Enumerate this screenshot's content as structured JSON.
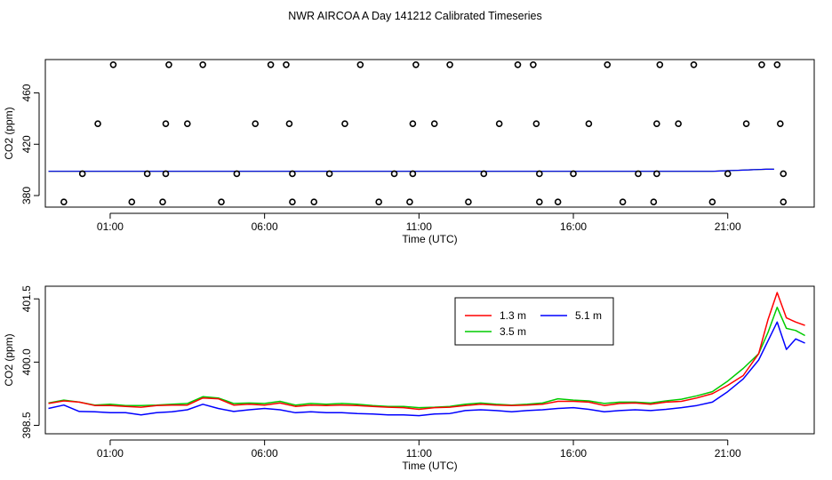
{
  "title": "NWR AIRCOA A  Day 141212  Calibrated Timeseries",
  "chart_data": [
    {
      "type": "scatter",
      "xlabel": "Time (UTC)",
      "ylabel": "CO2 (ppm)",
      "xlim": [
        -1.1,
        23.8
      ],
      "ylim": [
        371,
        486
      ],
      "x_ticks": [
        1,
        6,
        11,
        16,
        21
      ],
      "x_tick_labels": [
        "01:00",
        "06:00",
        "11:00",
        "16:00",
        "21:00"
      ],
      "y_ticks": [
        380,
        420,
        460
      ],
      "y_tick_labels": [
        "380",
        "420",
        "460"
      ],
      "cal_points": [
        {
          "x": -0.5,
          "y": 375
        },
        {
          "x": 0.1,
          "y": 397
        },
        {
          "x": 0.6,
          "y": 436
        },
        {
          "x": 1.1,
          "y": 482
        },
        {
          "x": 1.7,
          "y": 375
        },
        {
          "x": 2.2,
          "y": 397
        },
        {
          "x": 2.7,
          "y": 375
        },
        {
          "x": 2.8,
          "y": 397
        },
        {
          "x": 2.8,
          "y": 436
        },
        {
          "x": 2.9,
          "y": 482
        },
        {
          "x": 3.5,
          "y": 436
        },
        {
          "x": 4.0,
          "y": 482
        },
        {
          "x": 4.6,
          "y": 375
        },
        {
          "x": 5.1,
          "y": 397
        },
        {
          "x": 5.7,
          "y": 436
        },
        {
          "x": 6.2,
          "y": 482
        },
        {
          "x": 6.7,
          "y": 482
        },
        {
          "x": 6.8,
          "y": 436
        },
        {
          "x": 6.9,
          "y": 397
        },
        {
          "x": 6.9,
          "y": 375
        },
        {
          "x": 7.6,
          "y": 375
        },
        {
          "x": 8.1,
          "y": 397
        },
        {
          "x": 8.6,
          "y": 436
        },
        {
          "x": 9.1,
          "y": 482
        },
        {
          "x": 9.7,
          "y": 375
        },
        {
          "x": 10.2,
          "y": 397
        },
        {
          "x": 10.7,
          "y": 375
        },
        {
          "x": 10.8,
          "y": 397
        },
        {
          "x": 10.8,
          "y": 436
        },
        {
          "x": 10.9,
          "y": 482
        },
        {
          "x": 11.5,
          "y": 436
        },
        {
          "x": 12.0,
          "y": 482
        },
        {
          "x": 12.6,
          "y": 375
        },
        {
          "x": 13.1,
          "y": 397
        },
        {
          "x": 13.6,
          "y": 436
        },
        {
          "x": 14.2,
          "y": 482
        },
        {
          "x": 14.7,
          "y": 482
        },
        {
          "x": 14.8,
          "y": 436
        },
        {
          "x": 14.9,
          "y": 397
        },
        {
          "x": 14.9,
          "y": 375
        },
        {
          "x": 15.5,
          "y": 375
        },
        {
          "x": 16.0,
          "y": 397
        },
        {
          "x": 16.5,
          "y": 436
        },
        {
          "x": 17.1,
          "y": 482
        },
        {
          "x": 17.6,
          "y": 375
        },
        {
          "x": 18.1,
          "y": 397
        },
        {
          "x": 18.6,
          "y": 375
        },
        {
          "x": 18.7,
          "y": 397
        },
        {
          "x": 18.7,
          "y": 436
        },
        {
          "x": 18.8,
          "y": 482
        },
        {
          "x": 19.4,
          "y": 436
        },
        {
          "x": 19.9,
          "y": 482
        },
        {
          "x": 20.5,
          "y": 375
        },
        {
          "x": 21.0,
          "y": 397
        },
        {
          "x": 21.6,
          "y": 436
        },
        {
          "x": 22.1,
          "y": 482
        },
        {
          "x": 22.6,
          "y": 482
        },
        {
          "x": 22.7,
          "y": 436
        },
        {
          "x": 22.8,
          "y": 397
        },
        {
          "x": 22.8,
          "y": 375
        }
      ],
      "series_level": 398.9,
      "series_end_level": 400.5,
      "series_rise_start": 20.5,
      "series_x_range": [
        -1.0,
        22.7
      ],
      "series_colors": [
        "#ff0000",
        "#00cc00",
        "#0000ff"
      ]
    },
    {
      "type": "line",
      "xlabel": "Time (UTC)",
      "ylabel": "CO2 (ppm)",
      "xlim": [
        -1.1,
        23.8
      ],
      "ylim": [
        398.3,
        401.8
      ],
      "x_ticks": [
        1,
        6,
        11,
        16,
        21
      ],
      "x_tick_labels": [
        "01:00",
        "06:00",
        "11:00",
        "16:00",
        "21:00"
      ],
      "y_ticks": [
        398.5,
        400.0,
        401.5
      ],
      "y_tick_labels": [
        "398.5",
        "400.0",
        "401.5"
      ],
      "legend": {
        "position": "top-right",
        "entries": [
          {
            "label": "1.3 m",
            "color": "#ff0000"
          },
          {
            "label": "3.5 m",
            "color": "#00cc00"
          },
          {
            "label": "5.1 m",
            "color": "#0000ff"
          }
        ]
      },
      "series": [
        {
          "name": "1.3 m",
          "color": "#ff0000",
          "points": [
            [
              -1.0,
              399.02
            ],
            [
              -0.5,
              399.08
            ],
            [
              0.0,
              399.05
            ],
            [
              0.5,
              398.97
            ],
            [
              1.0,
              398.97
            ],
            [
              1.5,
              398.95
            ],
            [
              2.0,
              398.93
            ],
            [
              2.5,
              398.97
            ],
            [
              3.0,
              398.98
            ],
            [
              3.5,
              398.98
            ],
            [
              4.0,
              399.15
            ],
            [
              4.5,
              399.13
            ],
            [
              5.0,
              398.98
            ],
            [
              5.5,
              399.0
            ],
            [
              6.0,
              398.98
            ],
            [
              6.5,
              399.03
            ],
            [
              7.0,
              398.95
            ],
            [
              7.5,
              398.98
            ],
            [
              8.0,
              398.97
            ],
            [
              8.5,
              398.98
            ],
            [
              9.0,
              398.97
            ],
            [
              9.5,
              398.95
            ],
            [
              10.0,
              398.93
            ],
            [
              10.5,
              398.92
            ],
            [
              11.0,
              398.88
            ],
            [
              11.5,
              398.92
            ],
            [
              12.0,
              398.93
            ],
            [
              12.5,
              398.97
            ],
            [
              13.0,
              399.0
            ],
            [
              13.5,
              398.98
            ],
            [
              14.0,
              398.97
            ],
            [
              14.5,
              398.98
            ],
            [
              15.0,
              399.0
            ],
            [
              15.5,
              399.07
            ],
            [
              16.0,
              399.07
            ],
            [
              16.5,
              399.05
            ],
            [
              17.0,
              398.97
            ],
            [
              17.5,
              399.02
            ],
            [
              18.0,
              399.03
            ],
            [
              18.5,
              399.0
            ],
            [
              19.0,
              399.05
            ],
            [
              19.5,
              399.07
            ],
            [
              20.0,
              399.15
            ],
            [
              20.5,
              399.25
            ],
            [
              21.0,
              399.45
            ],
            [
              21.5,
              399.68
            ],
            [
              22.0,
              400.2
            ],
            [
              22.3,
              401.0
            ],
            [
              22.6,
              401.65
            ],
            [
              22.9,
              401.05
            ],
            [
              23.2,
              400.95
            ],
            [
              23.5,
              400.87
            ]
          ]
        },
        {
          "name": "3.5 m",
          "color": "#00cc00",
          "points": [
            [
              -1.0,
              399.03
            ],
            [
              -0.5,
              399.1
            ],
            [
              0.0,
              399.05
            ],
            [
              0.5,
              398.98
            ],
            [
              1.0,
              399.0
            ],
            [
              1.5,
              398.97
            ],
            [
              2.0,
              398.97
            ],
            [
              2.5,
              398.98
            ],
            [
              3.0,
              399.0
            ],
            [
              3.5,
              399.02
            ],
            [
              4.0,
              399.18
            ],
            [
              4.5,
              399.15
            ],
            [
              5.0,
              399.02
            ],
            [
              5.5,
              399.03
            ],
            [
              6.0,
              399.02
            ],
            [
              6.5,
              399.07
            ],
            [
              7.0,
              398.98
            ],
            [
              7.5,
              399.02
            ],
            [
              8.0,
              399.0
            ],
            [
              8.5,
              399.02
            ],
            [
              9.0,
              399.0
            ],
            [
              9.5,
              398.97
            ],
            [
              10.0,
              398.95
            ],
            [
              10.5,
              398.95
            ],
            [
              11.0,
              398.92
            ],
            [
              11.5,
              398.93
            ],
            [
              12.0,
              398.95
            ],
            [
              12.5,
              399.0
            ],
            [
              13.0,
              399.03
            ],
            [
              13.5,
              399.0
            ],
            [
              14.0,
              398.98
            ],
            [
              14.5,
              399.0
            ],
            [
              15.0,
              399.03
            ],
            [
              15.5,
              399.13
            ],
            [
              16.0,
              399.1
            ],
            [
              16.5,
              399.08
            ],
            [
              17.0,
              399.02
            ],
            [
              17.5,
              399.05
            ],
            [
              18.0,
              399.05
            ],
            [
              18.5,
              399.03
            ],
            [
              19.0,
              399.08
            ],
            [
              19.5,
              399.12
            ],
            [
              20.0,
              399.2
            ],
            [
              20.5,
              399.3
            ],
            [
              21.0,
              399.55
            ],
            [
              21.5,
              399.85
            ],
            [
              22.0,
              400.2
            ],
            [
              22.3,
              400.7
            ],
            [
              22.6,
              401.3
            ],
            [
              22.9,
              400.8
            ],
            [
              23.2,
              400.75
            ],
            [
              23.5,
              400.63
            ]
          ]
        },
        {
          "name": "5.1 m",
          "color": "#0000ff",
          "points": [
            [
              -1.0,
              398.9
            ],
            [
              -0.5,
              398.98
            ],
            [
              0.0,
              398.83
            ],
            [
              0.5,
              398.82
            ],
            [
              1.0,
              398.8
            ],
            [
              1.5,
              398.8
            ],
            [
              2.0,
              398.75
            ],
            [
              2.5,
              398.8
            ],
            [
              3.0,
              398.82
            ],
            [
              3.5,
              398.87
            ],
            [
              4.0,
              399.0
            ],
            [
              4.5,
              398.9
            ],
            [
              5.0,
              398.83
            ],
            [
              5.5,
              398.87
            ],
            [
              6.0,
              398.9
            ],
            [
              6.5,
              398.87
            ],
            [
              7.0,
              398.8
            ],
            [
              7.5,
              398.82
            ],
            [
              8.0,
              398.8
            ],
            [
              8.5,
              398.8
            ],
            [
              9.0,
              398.78
            ],
            [
              9.5,
              398.77
            ],
            [
              10.0,
              398.75
            ],
            [
              10.5,
              398.75
            ],
            [
              11.0,
              398.73
            ],
            [
              11.5,
              398.77
            ],
            [
              12.0,
              398.78
            ],
            [
              12.5,
              398.85
            ],
            [
              13.0,
              398.87
            ],
            [
              13.5,
              398.85
            ],
            [
              14.0,
              398.82
            ],
            [
              14.5,
              398.85
            ],
            [
              15.0,
              398.87
            ],
            [
              15.5,
              398.9
            ],
            [
              16.0,
              398.92
            ],
            [
              16.5,
              398.88
            ],
            [
              17.0,
              398.82
            ],
            [
              17.5,
              398.85
            ],
            [
              18.0,
              398.87
            ],
            [
              18.5,
              398.85
            ],
            [
              19.0,
              398.88
            ],
            [
              19.5,
              398.92
            ],
            [
              20.0,
              398.97
            ],
            [
              20.5,
              399.05
            ],
            [
              21.0,
              399.3
            ],
            [
              21.5,
              399.6
            ],
            [
              22.0,
              400.05
            ],
            [
              22.3,
              400.5
            ],
            [
              22.6,
              400.95
            ],
            [
              22.9,
              400.3
            ],
            [
              23.2,
              400.55
            ],
            [
              23.5,
              400.45
            ]
          ]
        }
      ]
    }
  ]
}
